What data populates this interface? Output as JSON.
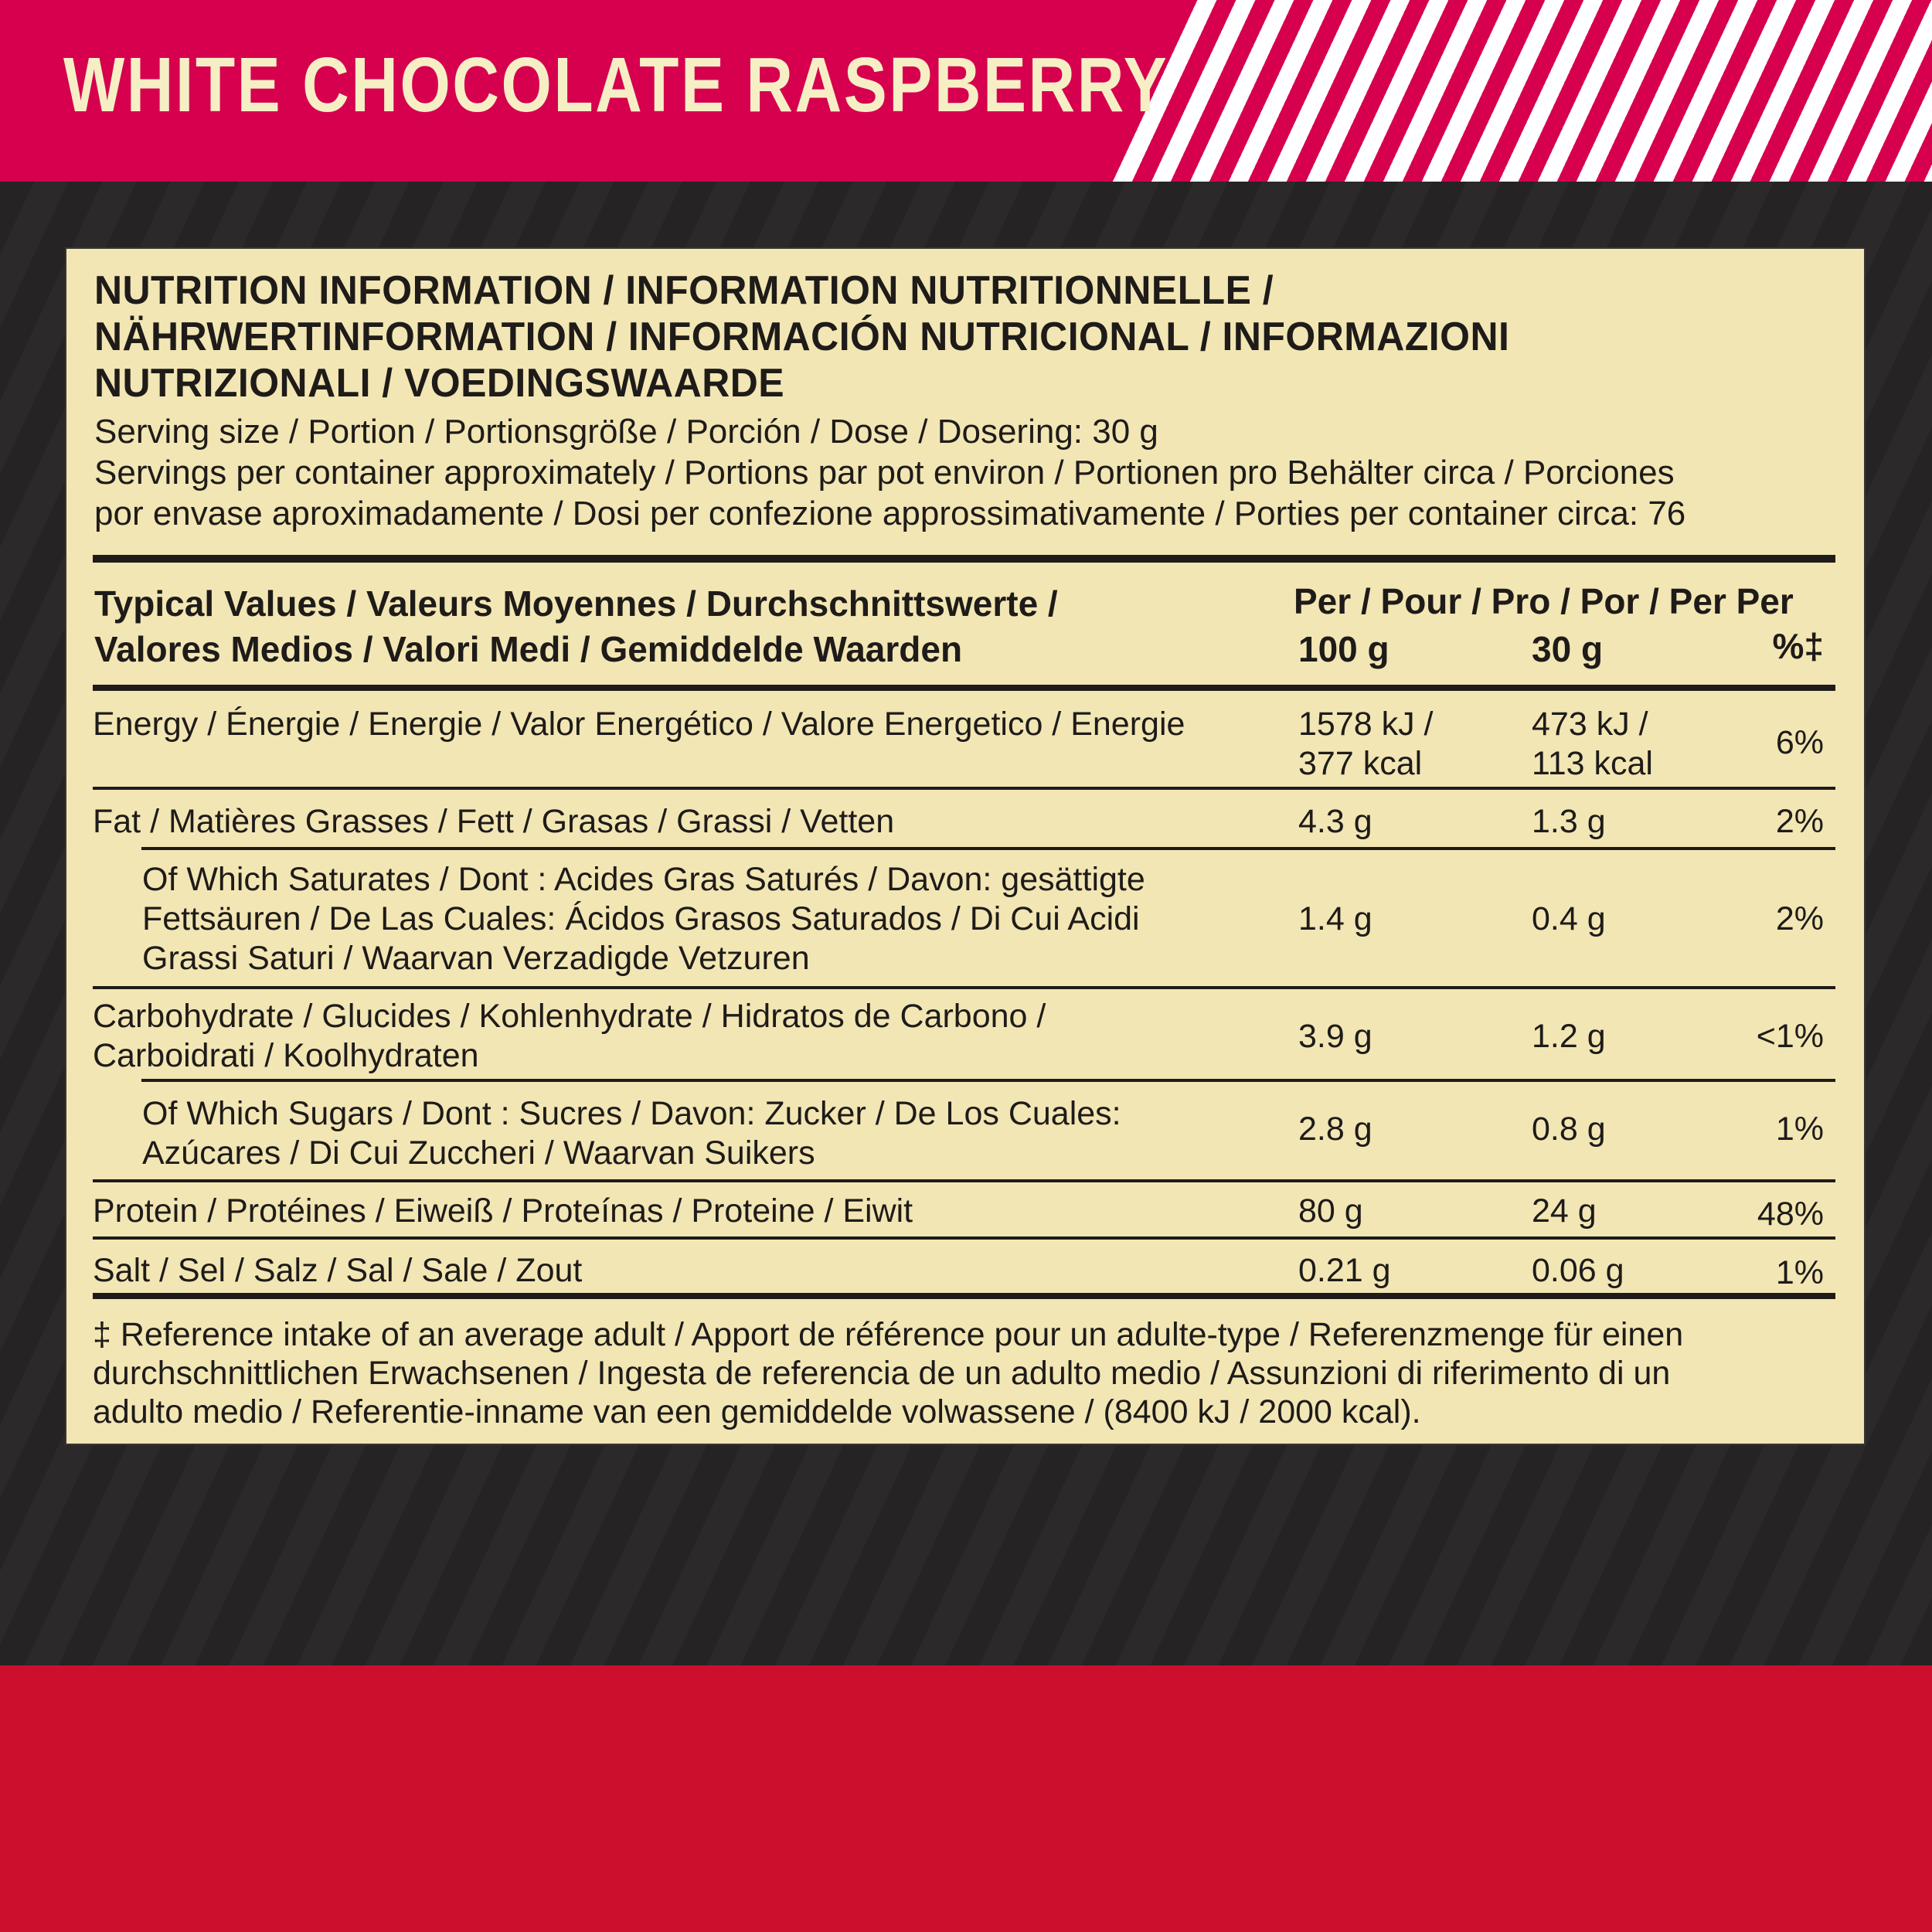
{
  "header": {
    "flavor": "WHITE CHOCOLATE RASPBERRY",
    "colors": {
      "pink": "#d6004f",
      "cream": "#f6efc6",
      "dark": "#232122",
      "red": "#cc0f2d",
      "panel": "#f2e6b4"
    }
  },
  "panel": {
    "title_lines": [
      "NUTRITION INFORMATION / INFORMATION NUTRITIONNELLE /",
      "NÄHRWERTINFORMATION / INFORMACIÓN NUTRICIONAL / INFORMAZIONI",
      "NUTRIZIONALI / VOEDINGSWAARDE"
    ],
    "serving_lines": [
      "Serving size / Portion / Portionsgröße / Porción / Dose / Dosering: 30 g",
      "Servings per container approximately / Portions par pot environ / Portionen pro Behälter circa / Porciones",
      "por envase aproximadamente / Dosi per confezione approssimativamente / Porties per container circa: 76"
    ],
    "table": {
      "header": {
        "label_lines": [
          "Typical Values / Valeurs Moyennes / Durchschnittswerte /",
          "Valores Medios / Valori Medi / Gemiddelde Waarden"
        ],
        "per_line": "Per / Pour / Pro / Por / Per Per",
        "col100": "100 g",
        "col30": "30 g",
        "colpct": "%‡"
      },
      "rows": [
        {
          "label_lines": [
            "Energy / Énergie / Energie / Valor Energético / Valore Energetico / Energie"
          ],
          "per100_lines": [
            "1578 kJ /",
            "377 kcal"
          ],
          "per30_lines": [
            "473 kJ /",
            "113 kcal"
          ],
          "pct": "6%"
        },
        {
          "label_lines": [
            "Fat / Matières Grasses / Fett / Grasas / Grassi / Vetten"
          ],
          "per100": "4.3 g",
          "per30": "1.3 g",
          "pct": "2%"
        },
        {
          "label_lines": [
            "Of Which Saturates / Dont : Acides Gras Saturés / Davon: gesättigte",
            "Fettsäuren / De Las Cuales: Ácidos Grasos Saturados / Di Cui Acidi",
            "Grassi Saturi / Waarvan Verzadigde Vetzuren"
          ],
          "per100": "1.4 g",
          "per30": "0.4 g",
          "pct": "2%"
        },
        {
          "label_lines": [
            "Carbohydrate / Glucides / Kohlenhydrate / Hidratos de Carbono /",
            "Carboidrati / Koolhydraten"
          ],
          "per100": "3.9 g",
          "per30": "1.2 g",
          "pct": "<1%"
        },
        {
          "label_lines": [
            "Of Which Sugars / Dont : Sucres / Davon: Zucker / De Los Cuales:",
            "Azúcares / Di Cui Zuccheri / Waarvan Suikers"
          ],
          "per100": "2.8 g",
          "per30": "0.8 g",
          "pct": "1%"
        },
        {
          "label_lines": [
            "Protein / Protéines / Eiweiß / Proteínas / Proteine / Eiwit"
          ],
          "per100": "80 g",
          "per30": "24 g",
          "pct": "48%"
        },
        {
          "label_lines": [
            "Salt / Sel / Salz / Sal / Sale / Zout"
          ],
          "per100": "0.21 g",
          "per30": "0.06 g",
          "pct": "1%"
        }
      ]
    },
    "footnote_lines": [
      "‡ Reference intake of an average adult / Apport de référence pour un adulte-type / Referenzmenge für einen",
      "durchschnittlichen Erwachsenen / Ingesta de referencia de un adulto medio / Assunzioni di riferimento di un",
      "adulto medio / Referentie-inname van een gemiddelde volwassene / (8400 kJ / 2000 kcal)."
    ]
  }
}
